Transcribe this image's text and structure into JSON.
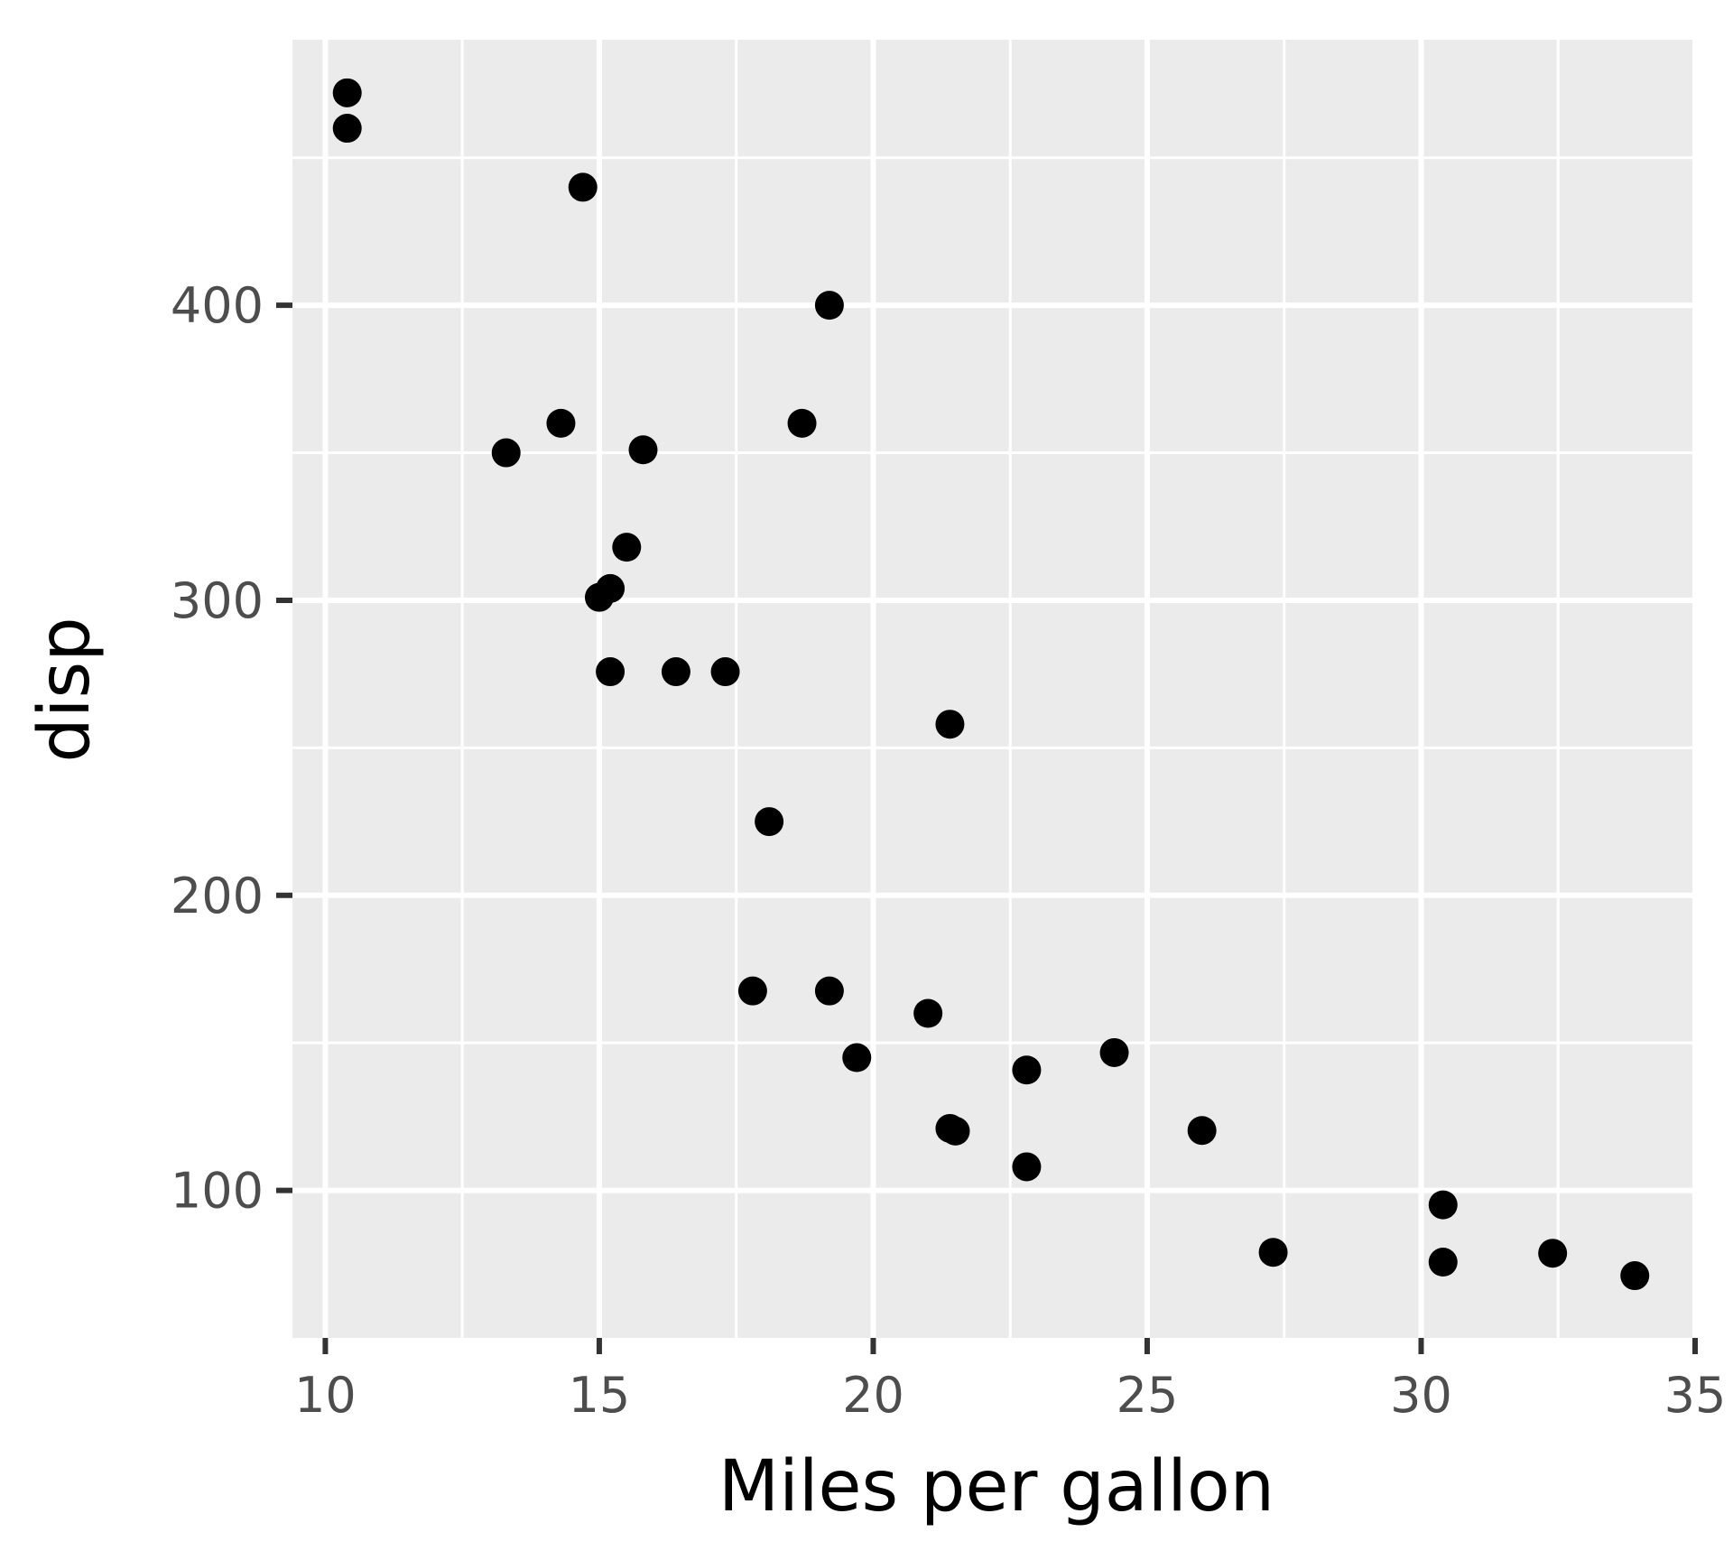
{
  "chart_data": {
    "type": "scatter",
    "xlabel": "Miles per gallon",
    "ylabel": "disp",
    "xlim": [
      9.4,
      35
    ],
    "ylim": [
      50,
      490
    ],
    "x_ticks": [
      10,
      15,
      20,
      25,
      30,
      35
    ],
    "x_tick_labels": [
      "10",
      "15",
      "20",
      "25",
      "30",
      "35"
    ],
    "x_minor_ticks": [
      12.5,
      17.5,
      22.5,
      27.5,
      32.5
    ],
    "y_ticks": [
      100,
      200,
      300,
      400
    ],
    "y_tick_labels": [
      "100",
      "200",
      "300",
      "400"
    ],
    "y_minor_ticks": [
      150,
      250,
      350,
      450
    ],
    "grid": true,
    "panel_background": "#ebebeb",
    "grid_color": "#ffffff",
    "point_color": "#000000",
    "points": [
      {
        "x": 10.4,
        "y": 472
      },
      {
        "x": 10.4,
        "y": 460
      },
      {
        "x": 14.7,
        "y": 440
      },
      {
        "x": 19.2,
        "y": 400
      },
      {
        "x": 14.3,
        "y": 360
      },
      {
        "x": 18.7,
        "y": 360
      },
      {
        "x": 13.3,
        "y": 350
      },
      {
        "x": 15.8,
        "y": 351
      },
      {
        "x": 15.5,
        "y": 318
      },
      {
        "x": 15.2,
        "y": 304
      },
      {
        "x": 15.0,
        "y": 301
      },
      {
        "x": 15.2,
        "y": 275.8
      },
      {
        "x": 16.4,
        "y": 275.8
      },
      {
        "x": 17.3,
        "y": 275.8
      },
      {
        "x": 21.4,
        "y": 258
      },
      {
        "x": 18.1,
        "y": 225
      },
      {
        "x": 17.8,
        "y": 167.6
      },
      {
        "x": 19.2,
        "y": 167.6
      },
      {
        "x": 21.0,
        "y": 160
      },
      {
        "x": 24.4,
        "y": 146.7
      },
      {
        "x": 19.7,
        "y": 145
      },
      {
        "x": 22.8,
        "y": 140.8
      },
      {
        "x": 21.4,
        "y": 121
      },
      {
        "x": 21.5,
        "y": 120.1
      },
      {
        "x": 26.0,
        "y": 120.3
      },
      {
        "x": 22.8,
        "y": 108
      },
      {
        "x": 30.4,
        "y": 95.1
      },
      {
        "x": 32.4,
        "y": 78.7
      },
      {
        "x": 27.3,
        "y": 79
      },
      {
        "x": 30.4,
        "y": 75.7
      },
      {
        "x": 33.9,
        "y": 71.1
      }
    ]
  }
}
